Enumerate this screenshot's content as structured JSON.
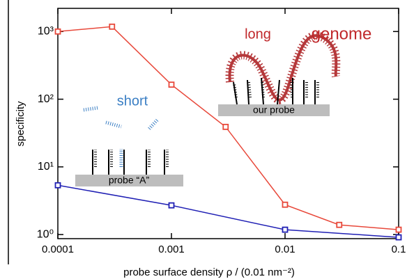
{
  "chart_data": {
    "type": "line",
    "xlabel": "probe surface density  ρ / (0.01 nm⁻²)",
    "ylabel": "specificity",
    "xscale": "log",
    "yscale": "log",
    "xlim": [
      0.0001,
      0.1
    ],
    "ylim": [
      0.87,
      2200
    ],
    "xticks": [
      0.0001,
      0.001,
      0.01,
      0.1
    ],
    "yticks": [
      {
        "value": 1,
        "label": "10⁰"
      },
      {
        "value": 10,
        "label": "10¹"
      },
      {
        "value": 100,
        "label": "10²"
      },
      {
        "value": 1000,
        "label": "10³"
      }
    ],
    "series": [
      {
        "name": "long genome",
        "color": "#e8483a",
        "x": [
          0.0001,
          0.0003,
          0.001,
          0.003,
          0.01,
          0.03,
          0.1
        ],
        "values": [
          1000,
          1180,
          164,
          39,
          2.76,
          1.39,
          1.18
        ]
      },
      {
        "name": "short",
        "color": "#1f1fb4",
        "x": [
          0.0001,
          0.001,
          0.01,
          0.1
        ],
        "values": [
          5.35,
          2.7,
          1.18,
          0.91
        ]
      }
    ],
    "annotations": {
      "long": "long",
      "genome": "genome",
      "short": "short",
      "our_probe": "our probe",
      "probe_a": "probe “A”"
    }
  }
}
